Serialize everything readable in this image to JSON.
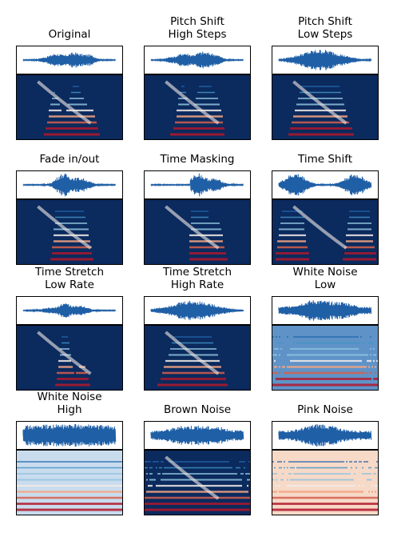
{
  "colors": {
    "waveform": "#1f5fa6",
    "spectrogram_background": "#0b2a5e",
    "spectrogram_low": "#2b6cb0",
    "spectrogram_mid": "#f3ece8",
    "spectrogram_high": "#b2182b"
  },
  "panels": [
    {
      "title": "Original"
    },
    {
      "title": "Pitch Shift\nHigh Steps"
    },
    {
      "title": "Pitch Shift\nLow Steps"
    },
    {
      "title": "Fade in/out"
    },
    {
      "title": "Time Masking"
    },
    {
      "title": "Time Shift"
    },
    {
      "title": "Time Stretch\nLow Rate"
    },
    {
      "title": "Time Stretch\nHigh Rate"
    },
    {
      "title": "White Noise\nLow"
    },
    {
      "title": "White Noise\nHigh"
    },
    {
      "title": "Brown Noise"
    },
    {
      "title": "Pink Noise"
    }
  ]
}
